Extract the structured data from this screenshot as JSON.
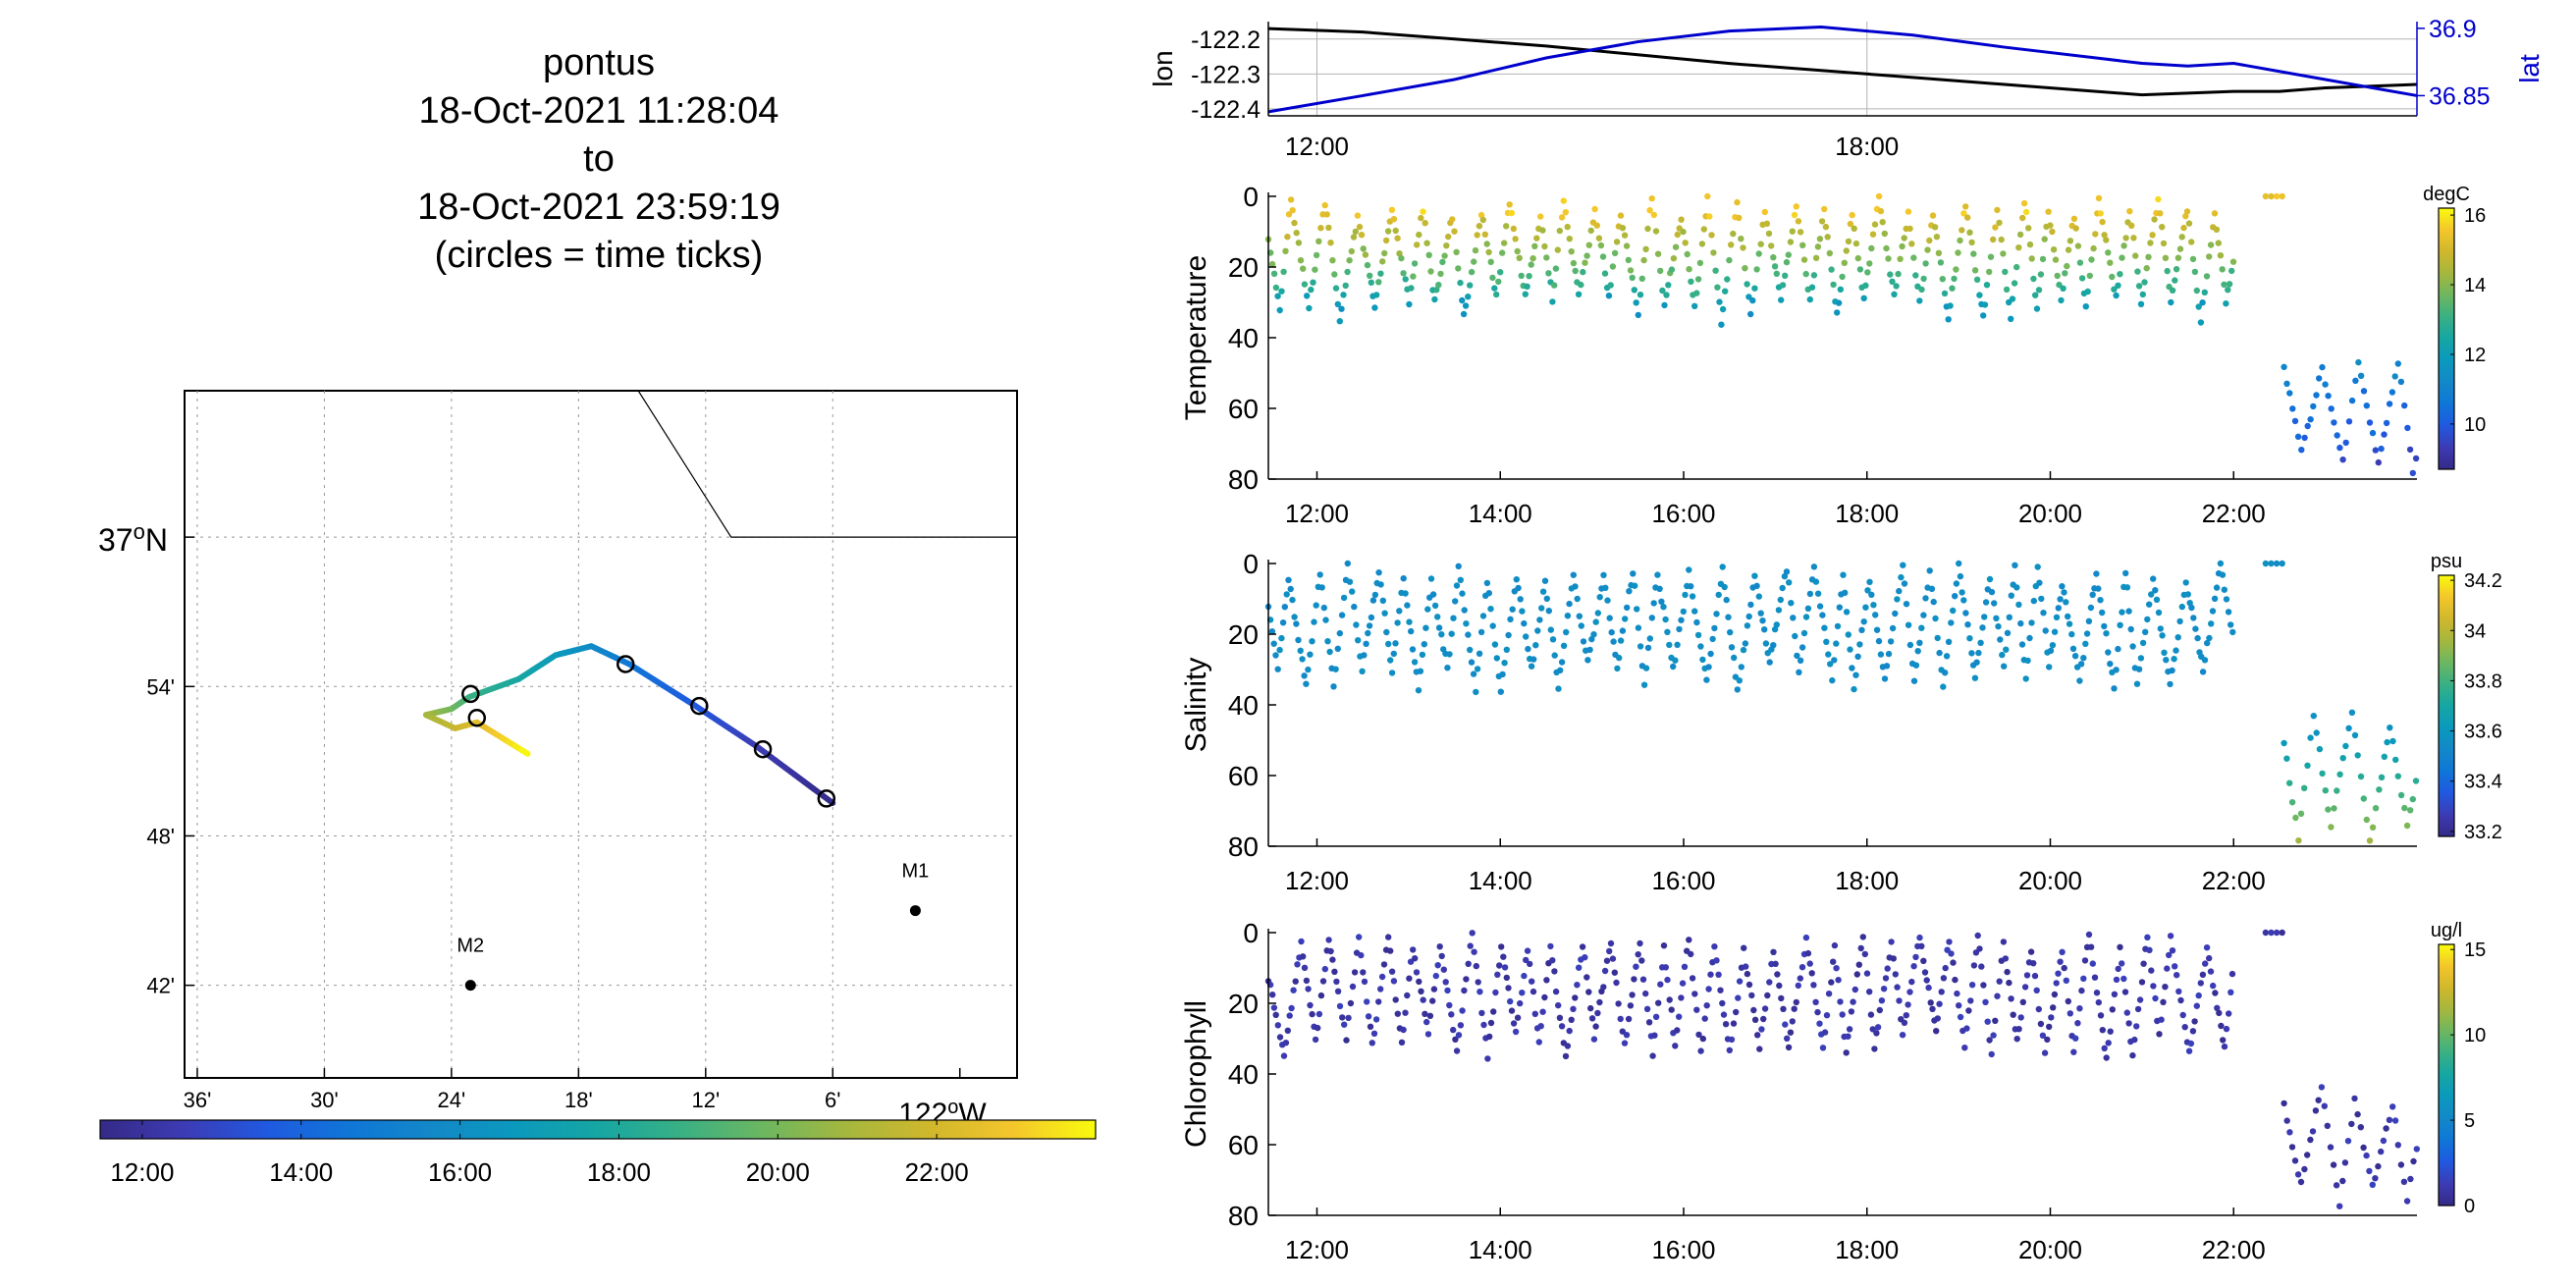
{
  "title": {
    "lines": [
      "pontus",
      "18-Oct-2021 11:28:04",
      "to",
      "18-Oct-2021 23:59:19",
      "(circles = time ticks)"
    ]
  },
  "colors": {
    "parula": [
      "#352a87",
      "#3d3bb4",
      "#2059e0",
      "#0f76d7",
      "#1388c8",
      "#0b99bd",
      "#16a6a3",
      "#39b084",
      "#6db760",
      "#a5b73e",
      "#d0b72c",
      "#f4c62c",
      "#f9fb0e"
    ],
    "lon_line": "#000000",
    "lat_line": "#0000cc",
    "grid": "#b4b4b4"
  },
  "map": {
    "lat_tick_labels": [
      "37°N",
      "54'",
      "48'",
      "42'"
    ],
    "lat_ticks": [
      37.0,
      36.9,
      36.8,
      36.7
    ],
    "lon_tick_labels": [
      "36'",
      "30'",
      "24'",
      "18'",
      "12'",
      "6'",
      "122°W"
    ],
    "lon_ticks": [
      -122.6,
      -122.5,
      -122.4,
      -122.3,
      -122.2,
      -122.1,
      -122.0
    ],
    "lon_range": [
      -122.61,
      -121.955
    ],
    "lat_range": [
      36.638,
      37.098
    ],
    "moorings": [
      {
        "name": "M1",
        "lon": -122.035,
        "lat": 36.75
      },
      {
        "name": "M2",
        "lon": -122.385,
        "lat": 36.7
      }
    ],
    "coastline": [
      [
        -122.253,
        37.098
      ],
      [
        -122.18,
        37.0
      ],
      [
        -121.955,
        37.0
      ]
    ],
    "track_points": [
      {
        "lon": -122.1,
        "lat": 36.822,
        "hour": 11.47
      },
      {
        "lon": -122.16,
        "lat": 36.86,
        "hour": 12.5
      },
      {
        "lon": -122.208,
        "lat": 36.887,
        "hour": 13.5
      },
      {
        "lon": -122.26,
        "lat": 36.915,
        "hour": 14.6
      },
      {
        "lon": -122.29,
        "lat": 36.927,
        "hour": 15.7
      },
      {
        "lon": -122.318,
        "lat": 36.921,
        "hour": 16.7
      },
      {
        "lon": -122.347,
        "lat": 36.905,
        "hour": 17.7
      },
      {
        "lon": -122.386,
        "lat": 36.893,
        "hour": 18.7
      },
      {
        "lon": -122.4,
        "lat": 36.885,
        "hour": 19.8
      },
      {
        "lon": -122.42,
        "lat": 36.881,
        "hour": 20.8
      },
      {
        "lon": -122.397,
        "lat": 36.872,
        "hour": 21.7
      },
      {
        "lon": -122.38,
        "lat": 36.876,
        "hour": 22.3
      },
      {
        "lon": -122.34,
        "lat": 36.855,
        "hour": 24.0
      }
    ],
    "time_tick_circles": [
      {
        "lon": -122.105,
        "lat": 36.825
      },
      {
        "lon": -122.155,
        "lat": 36.858
      },
      {
        "lon": -122.205,
        "lat": 36.887
      },
      {
        "lon": -122.263,
        "lat": 36.915
      },
      {
        "lon": -122.385,
        "lat": 36.895
      },
      {
        "lon": -122.38,
        "lat": 36.879
      }
    ]
  },
  "time_colorbar": {
    "tick_labels": [
      "12:00",
      "14:00",
      "16:00",
      "18:00",
      "20:00",
      "22:00"
    ],
    "ticks": [
      12,
      14,
      16,
      18,
      20,
      22
    ],
    "range": [
      11.47,
      24.0
    ]
  },
  "chart_data": [
    {
      "type": "line",
      "name": "lon-lat",
      "xlabel": "",
      "ylabel": "lon",
      "ylabel_right": "lat",
      "xlim": [
        11.47,
        24.0
      ],
      "x_tick_labels": [
        "12:00",
        "18:00"
      ],
      "x_ticks": [
        12,
        18
      ],
      "ylim": [
        -122.42,
        -122.15
      ],
      "y_tick_labels": [
        "-122.2",
        "-122.3",
        "-122.4"
      ],
      "y_ticks": [
        -122.2,
        -122.3,
        -122.4
      ],
      "ylim_right": [
        36.835,
        36.905
      ],
      "y_tick_labels_right": [
        "36.9",
        "36.85"
      ],
      "y_ticks_right": [
        36.9,
        36.85
      ],
      "series": [
        {
          "axis": "left",
          "x": [
            11.47,
            12.5,
            13.5,
            14.5,
            15.5,
            16.5,
            17.5,
            18.5,
            19.5,
            20.5,
            21,
            21.5,
            22,
            22.5,
            23,
            24
          ],
          "values": [
            -122.17,
            -122.18,
            -122.2,
            -122.22,
            -122.245,
            -122.27,
            -122.29,
            -122.31,
            -122.33,
            -122.35,
            -122.36,
            -122.355,
            -122.35,
            -122.35,
            -122.34,
            -122.33
          ]
        },
        {
          "axis": "right",
          "x": [
            11.47,
            12.5,
            13.5,
            14.5,
            15.5,
            16.5,
            17.5,
            18.5,
            19.5,
            20.5,
            21,
            21.5,
            22,
            22.5,
            23,
            24
          ],
          "values": [
            36.838,
            36.85,
            36.862,
            36.878,
            36.89,
            36.898,
            36.901,
            36.895,
            36.886,
            36.878,
            36.874,
            36.872,
            36.874,
            36.868,
            36.862,
            36.85
          ]
        }
      ]
    },
    {
      "type": "scatter",
      "name": "temperature",
      "ylabel": "Temperature",
      "ylim": [
        0,
        80
      ],
      "y_tick_labels": [
        "0",
        "20",
        "40",
        "60",
        "80"
      ],
      "y_ticks": [
        0,
        20,
        40,
        60,
        80
      ],
      "xlim": [
        11.47,
        24.0
      ],
      "x_tick_labels": [
        "12:00",
        "14:00",
        "16:00",
        "18:00",
        "20:00",
        "22:00"
      ],
      "x_ticks": [
        12,
        14,
        16,
        18,
        20,
        22
      ],
      "colorbar": {
        "unit": "degC",
        "range": [
          8.7,
          16.2
        ],
        "tick_labels": [
          "16",
          "14",
          "12",
          "10"
        ],
        "ticks": [
          16,
          14,
          12,
          10
        ]
      },
      "profiles": {
        "gap": [
          22.0,
          22.45
        ],
        "deep_start": 22.45,
        "deep_depth": [
          45,
          80
        ],
        "shallow_depth": [
          0,
          36
        ]
      },
      "points_summary": "Dense yo-yo profiles from 0-36 m until 22:00, then 45-80 m after 22:30; colder (10-12 degC) below ~30 m and 14-16 degC near surface."
    },
    {
      "type": "scatter",
      "name": "salinity",
      "ylabel": "Salinity",
      "ylim": [
        0,
        80
      ],
      "y_tick_labels": [
        "0",
        "20",
        "40",
        "60",
        "80"
      ],
      "y_ticks": [
        0,
        20,
        40,
        60,
        80
      ],
      "xlim": [
        11.47,
        24.0
      ],
      "x_tick_labels": [
        "12:00",
        "14:00",
        "16:00",
        "18:00",
        "20:00",
        "22:00"
      ],
      "x_ticks": [
        12,
        14,
        16,
        18,
        20,
        22
      ],
      "colorbar": {
        "unit": "psu",
        "range": [
          33.18,
          34.22
        ],
        "tick_labels": [
          "34.2",
          "34",
          "33.8",
          "33.6",
          "33.4",
          "33.2"
        ],
        "ticks": [
          34.2,
          34.0,
          33.8,
          33.6,
          33.4,
          33.2
        ]
      },
      "points_summary": "Mostly ~33.5 psu in upper 36 m; deeper profiles after 22:30 show 33.6-33.9 psu below 50 m."
    },
    {
      "type": "scatter",
      "name": "chlorophyll",
      "ylabel": "Chlorophyll",
      "ylim": [
        0,
        80
      ],
      "y_tick_labels": [
        "0",
        "20",
        "40",
        "60",
        "80"
      ],
      "y_ticks": [
        0,
        20,
        40,
        60,
        80
      ],
      "xlim": [
        11.47,
        24.0
      ],
      "x_tick_labels": [
        "12:00",
        "14:00",
        "16:00",
        "18:00",
        "20:00",
        "22:00"
      ],
      "x_ticks": [
        12,
        14,
        16,
        18,
        20,
        22
      ],
      "colorbar": {
        "unit": "ug/l",
        "range": [
          0,
          15.3
        ],
        "tick_labels": [
          "15",
          "10",
          "5",
          "0"
        ],
        "ticks": [
          15,
          10,
          5,
          0
        ]
      },
      "points_summary": "Uniformly low (~0-1 ug/l) chlorophyll across all depths and times."
    }
  ]
}
